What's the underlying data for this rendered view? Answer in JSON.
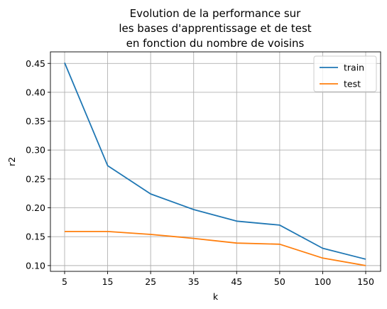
{
  "chart_data": {
    "type": "line",
    "title_lines": [
      "Evolution de la performance sur",
      "les bases d'apprentissage et de test",
      "en fonction du nombre de voisins"
    ],
    "xlabel": "k",
    "ylabel": "r2",
    "categories": [
      "5",
      "15",
      "25",
      "35",
      "45",
      "50",
      "100",
      "150"
    ],
    "x_scale": "categorical",
    "ylim": [
      0.09,
      0.47
    ],
    "yticks": [
      0.1,
      0.15,
      0.2,
      0.25,
      0.3,
      0.35,
      0.4,
      0.45
    ],
    "ytick_labels": [
      "0.10",
      "0.15",
      "0.20",
      "0.25",
      "0.30",
      "0.35",
      "0.40",
      "0.45"
    ],
    "grid": true,
    "legend_position": "top-right",
    "series": [
      {
        "name": "train",
        "color": "#1f77b4",
        "values": [
          0.451,
          0.273,
          0.224,
          0.197,
          0.177,
          0.17,
          0.13,
          0.111
        ]
      },
      {
        "name": "test",
        "color": "#ff7f0e",
        "values": [
          0.159,
          0.159,
          0.154,
          0.147,
          0.139,
          0.137,
          0.113,
          0.1
        ]
      }
    ]
  }
}
